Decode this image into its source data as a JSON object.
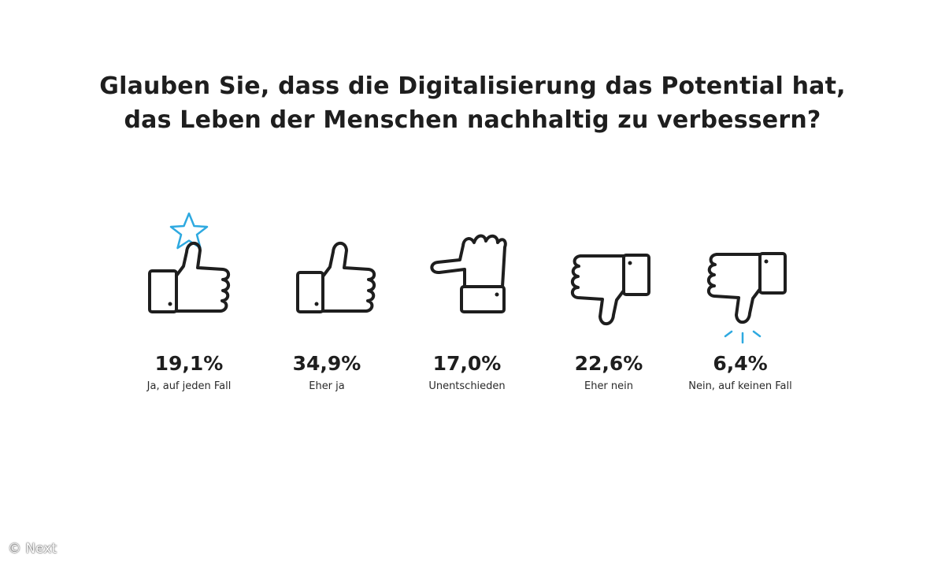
{
  "chart_data": {
    "type": "bar",
    "title": "Glauben Sie, dass die Digitalisierung das Potential hat, das Leben der Menschen nachhaltig zu verbessern?",
    "title_lines": [
      "Glauben Sie, dass die Digitalisierung das Potential hat,",
      "das Leben der Menschen nachhaltig zu verbessern?"
    ],
    "categories": [
      "Ja, auf jeden Fall",
      "Eher ja",
      "Unentschieden",
      "Eher nein",
      "Nein, auf keinen Fall"
    ],
    "values": [
      19.1,
      34.9,
      17.0,
      22.6,
      6.4
    ],
    "value_labels": [
      "19,1%",
      "34,9%",
      "17,0%",
      "22,6%",
      "6,4%"
    ],
    "icons": [
      "thumbs-up-star-icon",
      "thumbs-up-icon",
      "thumb-sideways-icon",
      "thumbs-down-icon",
      "thumbs-down-burst-icon"
    ]
  },
  "colors": {
    "text": "#1e1e1e",
    "icon_stroke": "#1e1e1e",
    "accent": "#2ea9e0"
  },
  "credit": "© Next"
}
